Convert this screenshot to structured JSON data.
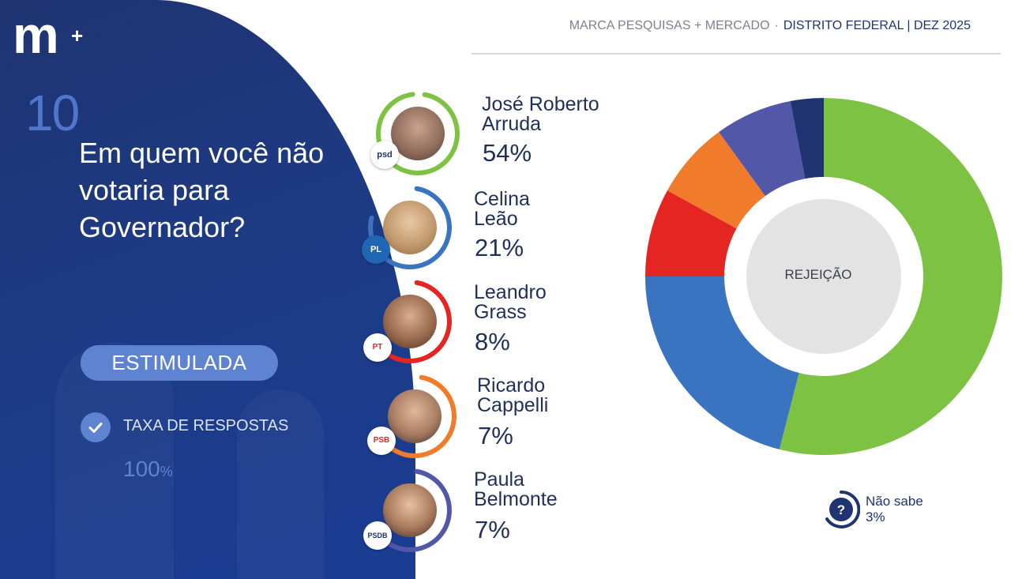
{
  "brand": {
    "logo_text": "m",
    "logo_plus": "+"
  },
  "header": {
    "source": "MARCA PESQUISAS + MERCADO",
    "separator": "·",
    "region": "DISTRITO FEDERAL",
    "divider": "|",
    "date": "DEZ 2025"
  },
  "question": {
    "number": "10",
    "text": "Em quem você não votaria para Governador?"
  },
  "mode_label": "ESTIMULADA",
  "response_rate": {
    "label": "TAXA DE RESPOSTAS",
    "value": "100",
    "unit": "%"
  },
  "candidates": [
    {
      "name": "José Roberto Arruda",
      "pct_label": "54%",
      "party": "psd",
      "color": "#7dc242"
    },
    {
      "name": "Celina Leão",
      "pct_label": "21%",
      "party": "PL",
      "color": "#3a73c0"
    },
    {
      "name": "Leandro Grass",
      "pct_label": "8%",
      "party": "PT",
      "color": "#e52521"
    },
    {
      "name": "Ricardo Cappelli",
      "pct_label": "7%",
      "party": "PSB",
      "color": "#f07b2b"
    },
    {
      "name": "Paula Belmonte",
      "pct_label": "7%",
      "party": "PSDB",
      "color": "#5257a8"
    }
  ],
  "nao_sabe": {
    "label": "Não sabe",
    "pct_label": "3%",
    "color": "#1f3470",
    "icon": "question-icon"
  },
  "chart_data": {
    "type": "pie",
    "style": "donut",
    "center_label": "REJEIÇÃO",
    "slices": [
      {
        "label": "José Roberto Arruda",
        "value": 54,
        "color": "#7dc242"
      },
      {
        "label": "Celina Leão",
        "value": 21,
        "color": "#3a73c0"
      },
      {
        "label": "Leandro Grass",
        "value": 8,
        "color": "#e52521"
      },
      {
        "label": "Ricardo Cappelli",
        "value": 7,
        "color": "#f07b2b"
      },
      {
        "label": "Paula Belmonte",
        "value": 7,
        "color": "#5257a8"
      },
      {
        "label": "Não sabe",
        "value": 3,
        "color": "#1f3470"
      }
    ]
  }
}
